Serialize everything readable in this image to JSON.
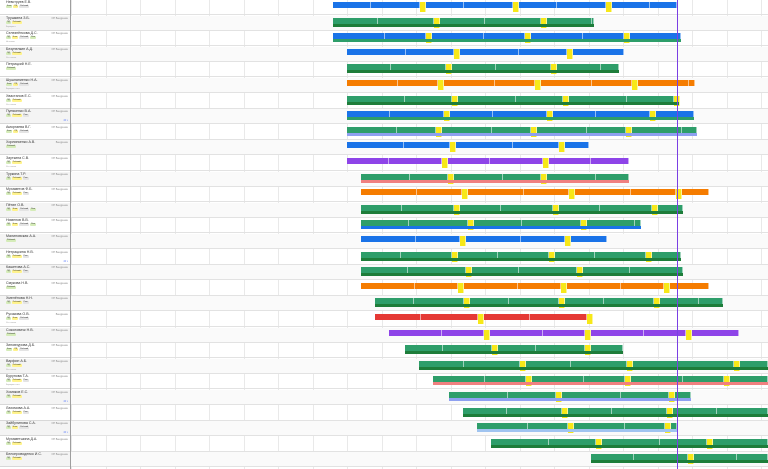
{
  "colors": {
    "blue": "#1a73e8",
    "green": "#2e9e6a",
    "dark_green": "#1e7d3a",
    "yellow": "#f7e819",
    "orange": "#f57c00",
    "purple": "#8e44e8",
    "red": "#e53935",
    "pink": "#f08080",
    "lavender": "#8ea0f0",
    "light_blue": "#a0c4f0",
    "now_line": "#7b3fe4"
  },
  "employees": [
    {
      "name": "Невструев Е.В.",
      "status": "",
      "badges": [
        "Блок",
        "ПД",
        "Рабочий"
      ],
      "sub": "",
      "marker": ""
    },
    {
      "name": "Трушкина З.Б.",
      "status": "ОП Внедрение",
      "badges": [
        "ПД",
        "Рабочий"
      ],
      "sub": "Карьерист",
      "marker": ""
    },
    {
      "name": "Селезнёнкова Д.С.",
      "status": "ОП Внедрение",
      "badges": [
        "ПД",
        "Блок",
        "Рабочий",
        "Реш"
      ],
      "sub": "Не оплач.",
      "marker": ""
    },
    {
      "name": "Безупелкин А.Д.",
      "status": "ОП Внедрение",
      "badges": [
        "ПД",
        "Рабочий"
      ],
      "sub": "Усл. смена",
      "marker": ""
    },
    {
      "name": "Петрицкий Н.Е.",
      "status": "",
      "badges": [
        "Рабочий"
      ],
      "sub": "",
      "marker": ""
    },
    {
      "name": "Шушпаниенко Н.А.",
      "status": "ОП Внедрение",
      "badges": [
        "Блок",
        "ПД",
        "Рабочий"
      ],
      "sub": "Карьерист отп.",
      "marker": ""
    },
    {
      "name": "Хвастанов Е.С.",
      "status": "ОП Внедрение",
      "badges": [
        "ПД",
        "Рабочий"
      ],
      "sub": "Усл. смена",
      "marker": ""
    },
    {
      "name": "Пулякенко В.А.",
      "status": "ОП Внедрение",
      "badges": [
        "ПД",
        "Рабочий",
        "Реш"
      ],
      "sub": "",
      "marker": "40 ч"
    },
    {
      "name": "Аморгаева В.Г.",
      "status": "ОП Внедрение",
      "badges": [
        "Блок",
        "ПД",
        "Рабочий"
      ],
      "sub": "",
      "marker": ""
    },
    {
      "name": "Хорлинкенко А.В.",
      "status": "Внедрение",
      "badges": [
        "Рабочий"
      ],
      "sub": "",
      "marker": ""
    },
    {
      "name": "Зауткина С.В.",
      "status": "ОП Внедрение",
      "badges": [
        "ПД",
        "Рабочий"
      ],
      "sub": "Усл. смена",
      "marker": ""
    },
    {
      "name": "Туркина Т.Р.",
      "status": "ОП Внедрение",
      "badges": [
        "ПД",
        "Рабочий",
        "Реш"
      ],
      "sub": "",
      "marker": ""
    },
    {
      "name": "Мухаметов Ф.Б.",
      "status": "ОП Внедрение",
      "badges": [
        "ПД",
        "Рабочий",
        "Реш"
      ],
      "sub": "",
      "marker": ""
    },
    {
      "name": "Пётин О.В.",
      "status": "ОП Внедрение",
      "badges": [
        "ПД",
        "Блок",
        "Рабочий",
        "Реш"
      ],
      "sub": "",
      "marker": ""
    },
    {
      "name": "Нименов В.В.",
      "status": "ОП Внедрение",
      "badges": [
        "ПД",
        "Блок",
        "Рабочий",
        "Реш"
      ],
      "sub": "",
      "marker": ""
    },
    {
      "name": "Малиновская А.А.",
      "status": "ОП Внедрение",
      "badges": [
        "Рабочий"
      ],
      "sub": "",
      "marker": ""
    },
    {
      "name": "Нетрацкина Н.В.",
      "status": "ОП Внедрение",
      "badges": [
        "ПД",
        "Рабочий",
        "Реш"
      ],
      "sub": "",
      "marker": "40 ч"
    },
    {
      "name": "Кашетова А.С.",
      "status": "ОП Внедрение",
      "badges": [
        "ПД",
        "Рабочий",
        "Реш"
      ],
      "sub": "",
      "marker": ""
    },
    {
      "name": "Смукова Н.В.",
      "status": "ОП Внедрение",
      "badges": [
        "Рабочий"
      ],
      "sub": "",
      "marker": ""
    },
    {
      "name": "Хмелёнова Н.Н.",
      "status": "ОП Внедрение",
      "badges": [
        "ПД",
        "Рабочий",
        "Реш"
      ],
      "sub": "",
      "marker": ""
    },
    {
      "name": "Русакова О.В.",
      "status": "Внедрение",
      "badges": [
        "ПД",
        "Блок",
        "Рабочий"
      ],
      "sub": "Усл. смена",
      "marker": ""
    },
    {
      "name": "Соколовичк Н.В.",
      "status": "ОП Внедрение",
      "badges": [
        "Рабочий"
      ],
      "sub": "",
      "marker": ""
    },
    {
      "name": "Зиновчурова Д.Б.",
      "status": "ОП Внедрение",
      "badges": [
        "Блок",
        "ПД",
        "Рабочий"
      ],
      "sub": "",
      "marker": ""
    },
    {
      "name": "Варфин А.Б.",
      "status": "ОП Внедрение",
      "badges": [
        "ПД",
        "Рабочий"
      ],
      "sub": "Усл. смена",
      "marker": ""
    },
    {
      "name": "Бурунова Т.А.",
      "status": "ОП Внедрение",
      "badges": [
        "ПД",
        "Рабочий",
        "Реш"
      ],
      "sub": "Карьерист отп.",
      "marker": ""
    },
    {
      "name": "Хомяков Е.С.",
      "status": "ОП Внедрение",
      "badges": [
        "ПД",
        "Рабочий"
      ],
      "sub": "",
      "marker": "40 ч"
    },
    {
      "name": "Лахомова А.А.",
      "status": "ОП Внедрение",
      "badges": [
        "ПД",
        "Рабочий",
        "Реш"
      ],
      "sub": "",
      "marker": ""
    },
    {
      "name": "Зайбулинова С.А.",
      "status": "ОП Внедрение",
      "badges": [
        "ПД",
        "Блок",
        "Рабочий"
      ],
      "sub": "",
      "marker": "40 ч"
    },
    {
      "name": "Мухаметшина Д.А.",
      "status": "ОП Внедрение",
      "badges": [
        "ПД",
        "Рабочий"
      ],
      "sub": "",
      "marker": ""
    },
    {
      "name": "Белопроводенко И.С.",
      "status": "ОП Внедрение",
      "badges": [
        "ПД",
        "Рабочий"
      ],
      "sub": "",
      "marker": ""
    }
  ]
}
